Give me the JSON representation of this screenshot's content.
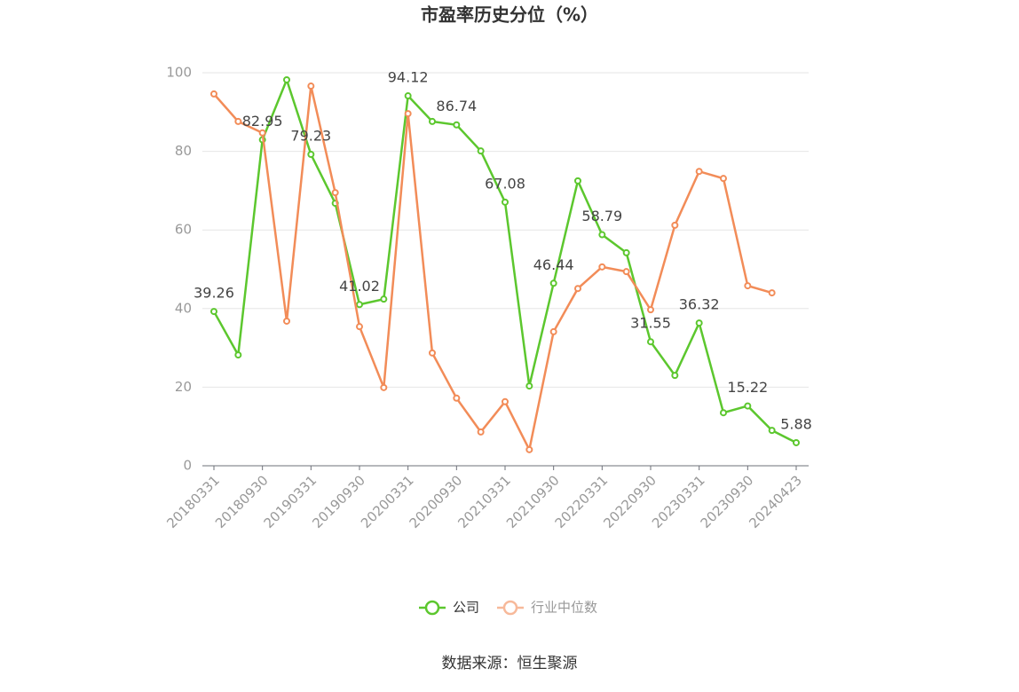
{
  "chart_data": {
    "type": "line",
    "title": "市盈率历史分位（%）",
    "categories": [
      "20180331",
      null,
      "20180930",
      null,
      "20190331",
      null,
      "20190930",
      null,
      "20200331",
      null,
      "20200930",
      null,
      "20210331",
      null,
      "20210930",
      null,
      "20220331",
      null,
      "20220930",
      null,
      "20230331",
      null,
      "20230930",
      null,
      "20240423"
    ],
    "series": [
      {
        "name": "公司",
        "color": "#5cc72e",
        "values": [
          39.26,
          28.2,
          82.95,
          98.2,
          79.23,
          66.8,
          41.02,
          42.4,
          94.12,
          87.6,
          86.74,
          80.1,
          67.08,
          20.3,
          46.44,
          72.5,
          58.79,
          54.2,
          31.55,
          23,
          36.32,
          13.5,
          15.22,
          9.0,
          5.88
        ]
      },
      {
        "name": "行业中位数",
        "color": "#f28c58",
        "values": [
          94.6,
          87.6,
          84.7,
          36.8,
          96.6,
          69.5,
          35.4,
          19.9,
          89.6,
          28.7,
          17.2,
          8.6,
          16.3,
          4.1,
          34.1,
          45.1,
          50.6,
          49.4,
          39.7,
          61.2,
          74.9,
          73.1,
          45.8,
          44.0,
          null
        ]
      }
    ],
    "ylim": [
      0,
      100
    ],
    "yticks": [
      0,
      20,
      40,
      60,
      80,
      100
    ],
    "grid": true,
    "source": "数据来源：恒生聚源"
  }
}
